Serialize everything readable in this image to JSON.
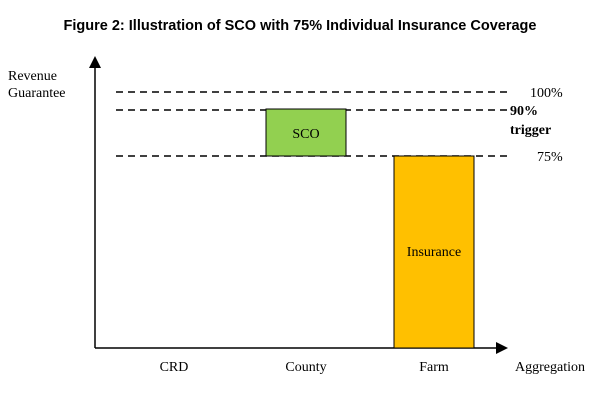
{
  "title": "Figure 2: Illustration of SCO with 75% Individual Insurance Coverage",
  "y_axis_label": [
    "Revenue",
    "Guarantee"
  ],
  "x_axis_label": "Aggregation",
  "categories": [
    "CRD",
    "County",
    "Farm"
  ],
  "reference_lines": [
    {
      "id": "100",
      "label": "100%"
    },
    {
      "id": "90",
      "label_lines": [
        "90%",
        "trigger"
      ]
    },
    {
      "id": "75",
      "label": "75%"
    }
  ],
  "boxes": {
    "sco": {
      "label": "SCO",
      "color": "#92d050"
    },
    "insurance": {
      "label": "Insurance",
      "color": "#ffc000"
    }
  }
}
